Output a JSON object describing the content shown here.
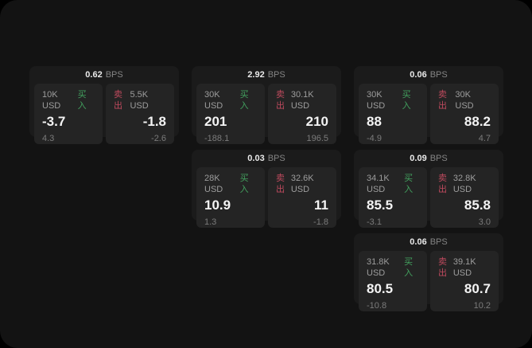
{
  "labels": {
    "bps_suffix": "BPS",
    "buy": "买入",
    "sell": "卖出"
  },
  "colors": {
    "window_bg": "#131313",
    "card_bg": "#1b1b1b",
    "panel_bg": "#242424",
    "buy": "#42a05e",
    "sell": "#bf4a5e"
  },
  "cards": [
    {
      "bps": "0.62",
      "row": 1,
      "col": 1,
      "buy": {
        "amount": "10K USD",
        "value": "-3.7",
        "sub": "4.3"
      },
      "sell": {
        "amount": "5.5K USD",
        "value": "-1.8",
        "sub": "-2.6"
      }
    },
    {
      "bps": "2.92",
      "row": 1,
      "col": 2,
      "buy": {
        "amount": "30K USD",
        "value": "201",
        "sub": "-188.1"
      },
      "sell": {
        "amount": "30.1K USD",
        "value": "210",
        "sub": "196.5"
      }
    },
    {
      "bps": "0.06",
      "row": 1,
      "col": 3,
      "buy": {
        "amount": "30K USD",
        "value": "88",
        "sub": "-4.9"
      },
      "sell": {
        "amount": "30K USD",
        "value": "88.2",
        "sub": "4.7"
      }
    },
    {
      "bps": "0.03",
      "row": 2,
      "col": 2,
      "buy": {
        "amount": "28K USD",
        "value": "10.9",
        "sub": "1.3"
      },
      "sell": {
        "amount": "32.6K USD",
        "value": "11",
        "sub": "-1.8"
      }
    },
    {
      "bps": "0.09",
      "row": 2,
      "col": 3,
      "buy": {
        "amount": "34.1K USD",
        "value": "85.5",
        "sub": "-3.1"
      },
      "sell": {
        "amount": "32.8K USD",
        "value": "85.8",
        "sub": "3.0"
      }
    },
    {
      "bps": "0.06",
      "row": 3,
      "col": 3,
      "buy": {
        "amount": "31.8K USD",
        "value": "80.5",
        "sub": "-10.8"
      },
      "sell": {
        "amount": "39.1K USD",
        "value": "80.7",
        "sub": "10.2"
      }
    }
  ]
}
